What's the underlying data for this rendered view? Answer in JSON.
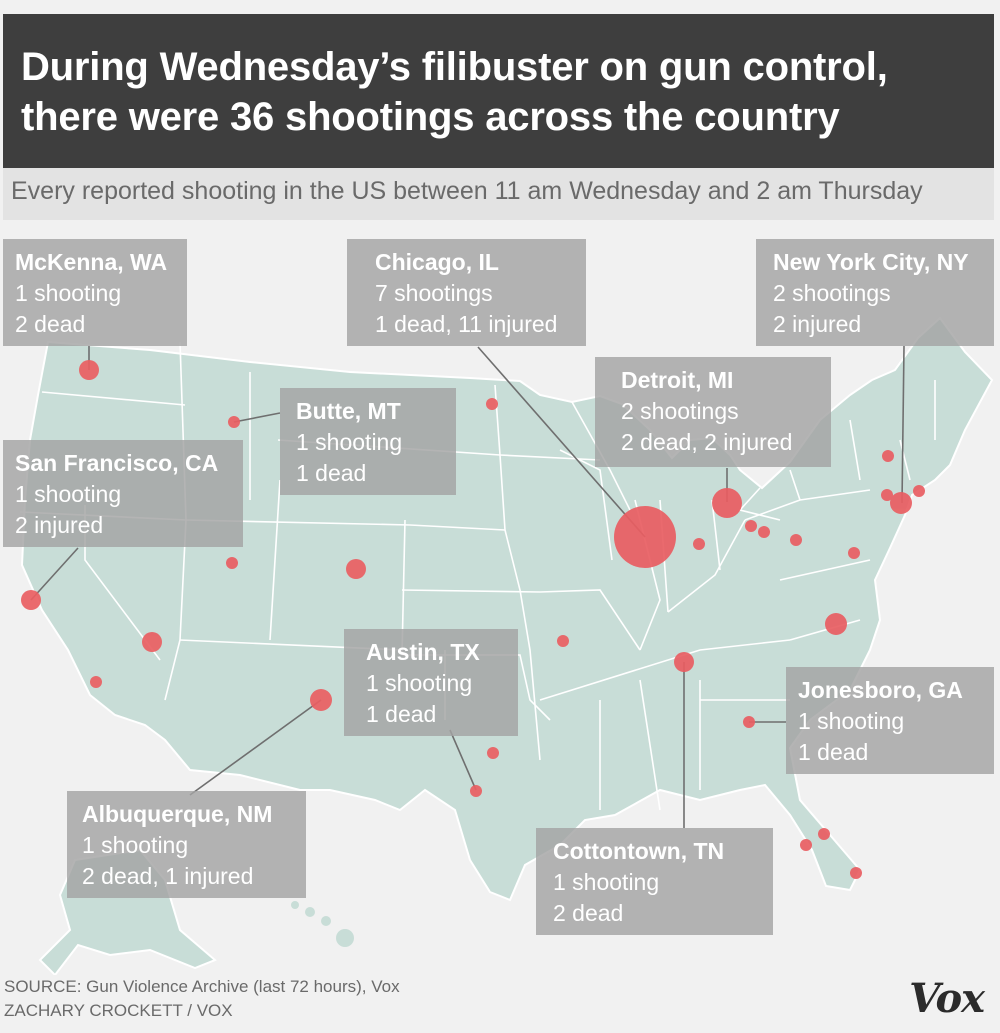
{
  "header": {
    "title_line1": "During Wednesday’s filibuster on gun control,",
    "title_line2": "there were 36 shootings across the country",
    "subtitle": "Every reported shooting in the US between 11 am Wednesday and 2 am Thursday"
  },
  "map": {
    "land_color": "#c8ddd7",
    "border_color": "#ffffff",
    "dot_color": "#e95e62",
    "shooting_dots": [
      {
        "place": "McKenna, WA",
        "shootings": 1
      },
      {
        "place": "Butte, MT",
        "shootings": 1
      },
      {
        "place": "San Francisco, CA",
        "shootings": 1
      },
      {
        "place": "Albuquerque, NM",
        "shootings": 1
      },
      {
        "place": "Chicago, IL",
        "shootings": 7
      },
      {
        "place": "Detroit, MI",
        "shootings": 2
      },
      {
        "place": "New York City, NY",
        "shootings": 2
      },
      {
        "place": "Austin, TX",
        "shootings": 1
      },
      {
        "place": "Cottontown, TN",
        "shootings": 1
      },
      {
        "place": "Jonesboro, GA",
        "shootings": 1
      }
    ]
  },
  "labels": [
    {
      "city": "McKenna, WA",
      "line1": "1 shooting",
      "line2": "2 dead"
    },
    {
      "city": "Chicago, IL",
      "line1": "7 shootings",
      "line2": "1 dead, 11 injured"
    },
    {
      "city": "New York City, NY",
      "line1": "2 shootings",
      "line2": "2 injured"
    },
    {
      "city": "Detroit, MI",
      "line1": "2 shootings",
      "line2": "2 dead, 2 injured"
    },
    {
      "city": "Butte, MT",
      "line1": "1 shooting",
      "line2": "1 dead"
    },
    {
      "city": "San Francisco, CA",
      "line1": "1 shooting",
      "line2": "2 injured"
    },
    {
      "city": "Austin, TX",
      "line1": "1 shooting",
      "line2": "1 dead"
    },
    {
      "city": "Jonesboro, GA",
      "line1": "1 shooting",
      "line2": "1 dead"
    },
    {
      "city": "Albuquerque, NM",
      "line1": "1 shooting",
      "line2": "2 dead, 1 injured"
    },
    {
      "city": "Cottontown, TN",
      "line1": "1 shooting",
      "line2": "2 dead"
    }
  ],
  "footer": {
    "source": "SOURCE: Gun Violence Archive (last 72 hours), Vox",
    "credit": "ZACHARY CROCKETT / VOX",
    "logo": "Vox"
  }
}
